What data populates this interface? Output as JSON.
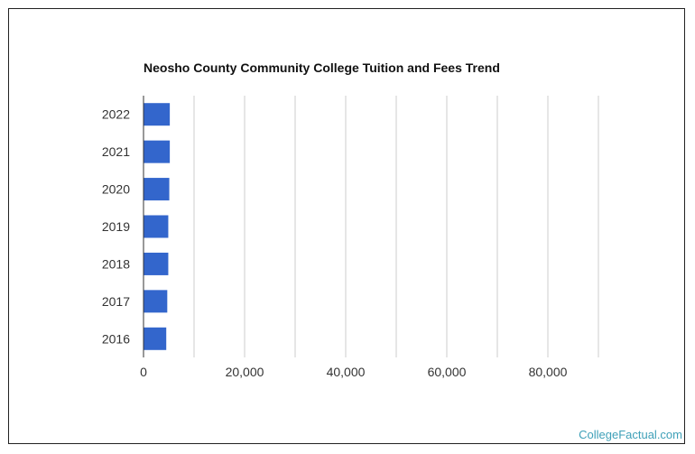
{
  "watermark": "CollegeFactual.com",
  "chart_data": {
    "type": "bar",
    "orientation": "horizontal",
    "title": "Neosho County Community College Tuition and Fees Trend",
    "xlabel": "",
    "ylabel": "",
    "categories": [
      "2022",
      "2021",
      "2020",
      "2019",
      "2018",
      "2017",
      "2016"
    ],
    "values": [
      5200,
      5200,
      5100,
      4900,
      4900,
      4700,
      4500
    ],
    "xlim": [
      0,
      90000
    ],
    "x_ticks": [
      0,
      20000,
      40000,
      60000,
      80000
    ],
    "x_tick_labels": [
      "0",
      "20,000",
      "40,000",
      "60,000",
      "80,000"
    ],
    "grid_minor_step": 10000,
    "grid": true,
    "legend": "none",
    "bar_color": "#3366cc",
    "grid_color": "#cccccc",
    "axis_color": "#333333"
  }
}
